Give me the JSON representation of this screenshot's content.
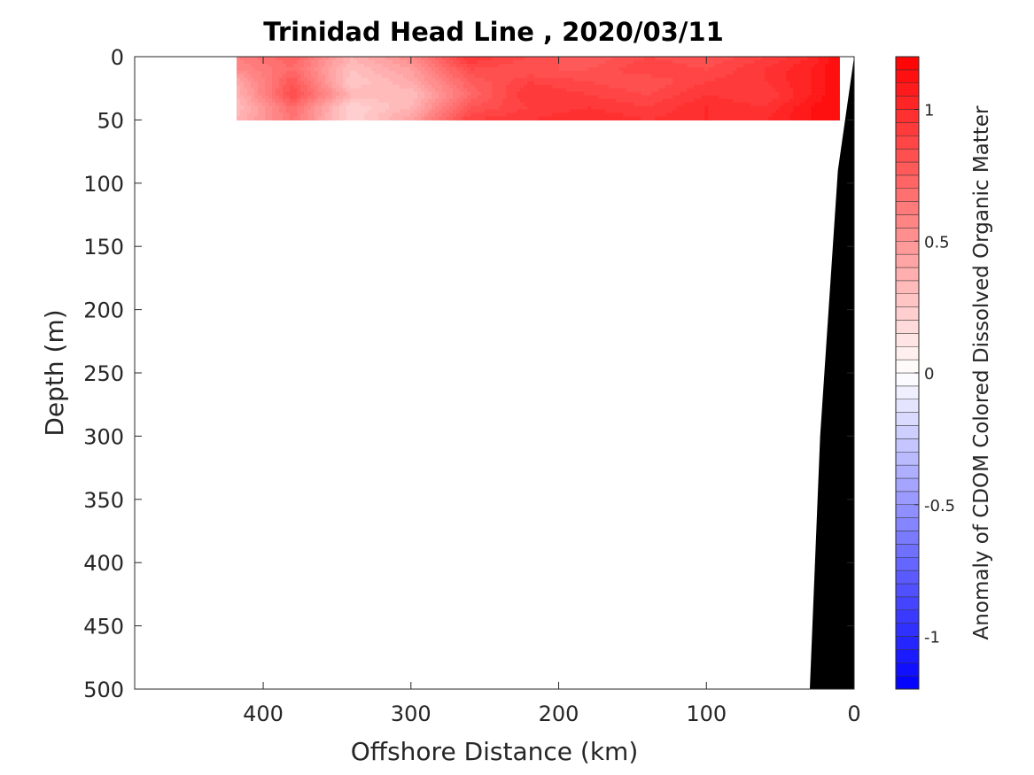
{
  "chart_data": {
    "type": "heatmap",
    "title": "Trinidad Head Line , 2020/03/11",
    "xlabel": "Offshore Distance (km)",
    "ylabel": "Depth (m)",
    "xlim": [
      487,
      0
    ],
    "ylim": [
      500,
      0
    ],
    "x_reversed": true,
    "y_reversed": true,
    "x_ticks": [
      400,
      300,
      200,
      100,
      0
    ],
    "x_tick_labels": [
      "400",
      "300",
      "200",
      "100",
      "0"
    ],
    "y_ticks": [
      0,
      50,
      100,
      150,
      200,
      250,
      300,
      350,
      400,
      450,
      500
    ],
    "y_tick_labels": [
      "0",
      "50",
      "100",
      "150",
      "200",
      "250",
      "300",
      "350",
      "400",
      "450",
      "500"
    ],
    "colorbar": {
      "label": "Anomaly of CDOM Colored Dissolved Organic Matter",
      "range": [
        -1.2,
        1.2
      ],
      "ticks": [
        -1,
        -0.5,
        0,
        0.5,
        1
      ],
      "tick_labels": [
        "-1",
        "-0.5",
        "0",
        "0.5",
        "1"
      ],
      "levels": 48,
      "colormap": "blue-white-red",
      "color_min": "#0000ff",
      "color_mid": "#ffffff",
      "color_max": "#ff0000"
    },
    "data_region": {
      "x_range_km": [
        418,
        10
      ],
      "depth_range_m": [
        0,
        50
      ],
      "anomaly_grid": {
        "x_km": [
          418,
          380,
          340,
          300,
          260,
          220,
          180,
          140,
          100,
          60,
          30,
          10
        ],
        "depth_m": [
          0,
          10,
          20,
          30,
          40,
          50
        ],
        "values": [
          [
            0.6,
            0.75,
            0.35,
            0.55,
            0.95,
            0.85,
            0.75,
            0.85,
            0.8,
            0.9,
            1.0,
            1.15
          ],
          [
            0.55,
            0.7,
            0.3,
            0.45,
            0.85,
            0.8,
            0.8,
            0.9,
            0.85,
            0.95,
            1.05,
            1.15
          ],
          [
            0.4,
            0.8,
            0.25,
            0.4,
            0.75,
            0.9,
            0.85,
            0.8,
            0.9,
            0.95,
            1.05,
            1.15
          ],
          [
            0.35,
            0.85,
            0.35,
            0.3,
            0.7,
            0.95,
            0.9,
            0.85,
            0.95,
            0.9,
            1.05,
            1.15
          ],
          [
            0.3,
            0.7,
            0.2,
            0.35,
            0.8,
            0.9,
            0.95,
            0.9,
            1.0,
            0.95,
            1.1,
            1.15
          ],
          [
            0.35,
            0.65,
            0.2,
            0.45,
            0.9,
            0.95,
            1.0,
            0.95,
            1.0,
            1.0,
            1.1,
            1.15
          ]
        ]
      }
    },
    "bathymetry": {
      "color": "#000000",
      "depth_m": [
        0,
        90,
        300,
        500
      ],
      "shelf_edge_km": [
        0,
        11,
        23,
        30
      ]
    }
  }
}
